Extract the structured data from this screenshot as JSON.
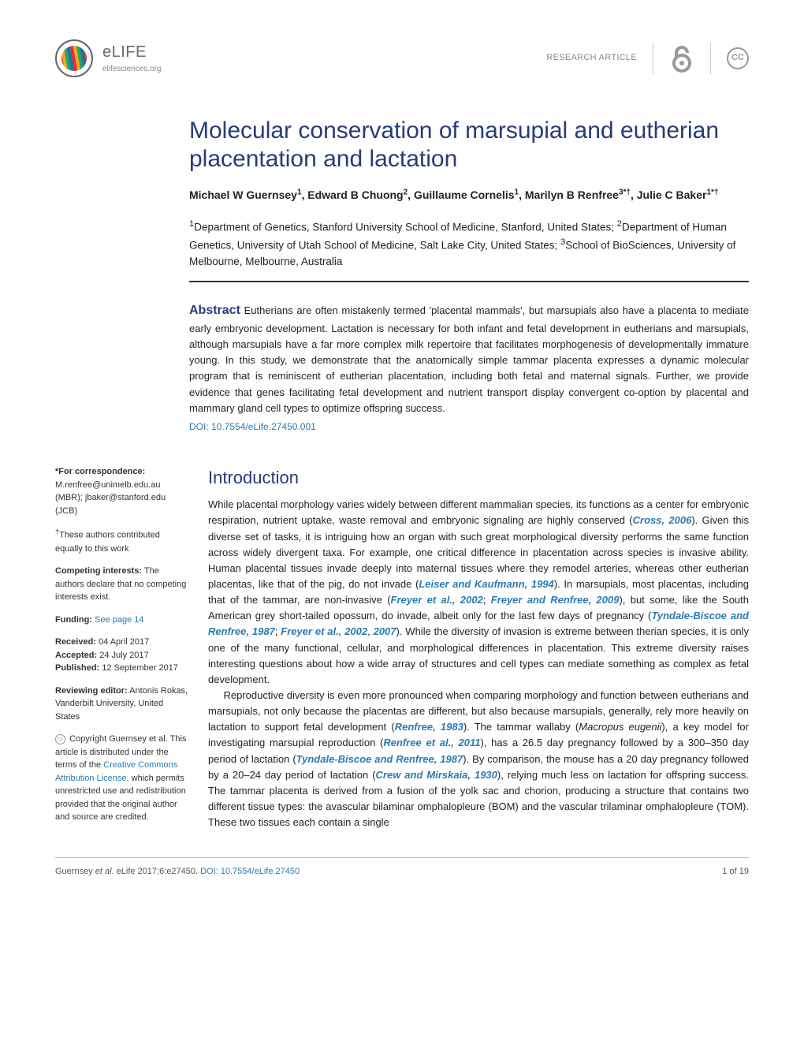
{
  "header": {
    "journal_name": "eLIFE",
    "journal_site": "elifesciences.org",
    "article_type": "RESEARCH ARTICLE",
    "cc_label": "CC"
  },
  "title": "Molecular conservation of marsupial and eutherian placentation and lactation",
  "authors_html": "Michael W Guernsey<sup>1</sup>, Edward B Chuong<sup>2</sup>, Guillaume Cornelis<sup>1</sup>, Marilyn B Renfree<sup>3*†</sup>, Julie C Baker<sup>1*†</sup>",
  "affiliations_html": "<sup>1</sup>Department of Genetics, Stanford University School of Medicine, Stanford, United States; <sup>2</sup>Department of Human Genetics, University of Utah School of Medicine, Salt Lake City, United States; <sup>3</sup>School of BioSciences, University of Melbourne, Melbourne, Australia",
  "abstract": {
    "label": "Abstract",
    "text": "Eutherians are often mistakenly termed 'placental mammals', but marsupials also have a placenta to mediate early embryonic development. Lactation is necessary for both infant and fetal development in eutherians and marsupials, although marsupials have a far more complex milk repertoire that facilitates morphogenesis of developmentally immature young. In this study, we demonstrate that the anatomically simple tammar placenta expresses a dynamic molecular program that is reminiscent of eutherian placentation, including both fetal and maternal signals. Further, we provide evidence that genes facilitating fetal development and nutrient transport display convergent co-option by placental and mammary gland cell types to optimize offspring success.",
    "doi": "DOI: 10.7554/eLife.27450.001"
  },
  "sidebar": {
    "correspondence_label": "*For correspondence:",
    "correspondence_text": " M.renfree@unimelb.edu.au (MBR); jbaker@stanford.edu (JCB)",
    "equal_contrib": "†These authors contributed equally to this work",
    "competing_label": "Competing interests:",
    "competing_text": " The authors declare that no competing interests exist.",
    "funding_label": "Funding:",
    "funding_link": " See page 14",
    "received_label": "Received:",
    "received_date": " 04 April 2017",
    "accepted_label": "Accepted:",
    "accepted_date": " 24 July 2017",
    "published_label": "Published:",
    "published_date": " 12 September 2017",
    "reviewing_label": "Reviewing editor:",
    "reviewing_text": "  Antonis Rokas, Vanderbilt University, United States",
    "copyright_text": "Copyright Guernsey et al. This article is distributed under the terms of the ",
    "cc_link": "Creative Commons Attribution License,",
    "copyright_text2": " which permits unrestricted use and redistribution provided that the original author and source are credited."
  },
  "intro": {
    "heading": "Introduction",
    "para1_parts": [
      {
        "t": "While placental morphology varies widely between different mammalian species, its functions as a center for embryonic respiration, nutrient uptake, waste removal and embryonic signaling are highly conserved ("
      },
      {
        "r": "Cross, 2006"
      },
      {
        "t": "). Given this diverse set of tasks, it is intriguing how an organ with such great morphological diversity performs the same function across widely divergent taxa. For example, one critical difference in placentation across species is invasive ability. Human placental tissues invade deeply into maternal tissues where they remodel arteries, whereas other eutherian placentas, like that of the pig, do not invade ("
      },
      {
        "r": "Leiser and Kaufmann, 1994"
      },
      {
        "t": "). In marsupials, most placentas, including that of the tammar, are non-invasive ("
      },
      {
        "r": "Freyer et al., 2002"
      },
      {
        "t": "; "
      },
      {
        "r": "Freyer and Renfree, 2009"
      },
      {
        "t": "), but some, like the South American grey short-tailed opossum, do invade, albeit only for the last few days of pregnancy ("
      },
      {
        "r": "Tyndale-Biscoe and Renfree, 1987"
      },
      {
        "t": "; "
      },
      {
        "r": "Freyer et al., 2002"
      },
      {
        "t": ", "
      },
      {
        "r": "2007"
      },
      {
        "t": "). While the diversity of invasion is extreme between therian species, it is only one of the many functional, cellular, and morphological differences in placentation. This extreme diversity raises interesting questions about how a wide array of structures and cell types can mediate something as complex as fetal development."
      }
    ],
    "para2_parts": [
      {
        "t": "Reproductive diversity is even more pronounced when comparing morphology and function between eutherians and marsupials, not only because the placentas are different, but also because marsupials, generally, rely more heavily on lactation to support fetal development ("
      },
      {
        "r": "Renfree, 1983"
      },
      {
        "t": "). The tammar wallaby ("
      },
      {
        "i": "Macropus eugenii"
      },
      {
        "t": "), a key model for investigating marsupial reproduction ("
      },
      {
        "r": "Renfree et al., 2011"
      },
      {
        "t": "), has a 26.5 day pregnancy followed by a 300–350 day period of lactation ("
      },
      {
        "r": "Tyndale-Biscoe and Renfree, 1987"
      },
      {
        "t": "). By comparison, the mouse has a 20 day pregnancy followed by a 20–24 day period of lactation ("
      },
      {
        "r": "Crew and Mirskaia, 1930"
      },
      {
        "t": "), relying much less on lactation for offspring success. The tammar placenta is derived from a fusion of the yolk sac and chorion, producing a structure that contains two different tissue types: the avascular bilaminar omphalopleure (BOM) and the vascular trilaminar omphalopleure (TOM). These two tissues each contain a single"
      }
    ]
  },
  "footer": {
    "citation_prefix": "Guernsey ",
    "citation_italic": "et al",
    "citation_rest": ". eLife 2017;6:e27450. ",
    "citation_doi": "DOI: 10.7554/eLife.27450",
    "page_num": "1 of 19"
  },
  "colors": {
    "heading_blue": "#273b7a",
    "link_blue": "#2a7ab0"
  }
}
